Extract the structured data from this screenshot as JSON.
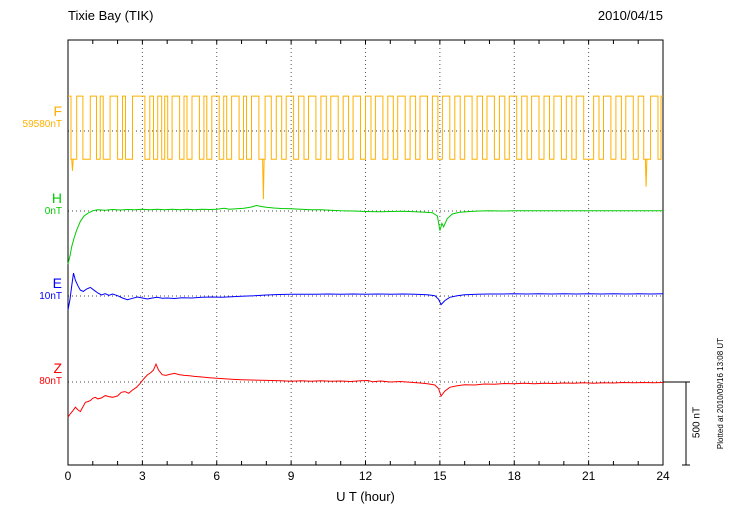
{
  "header": {
    "title": "Tixie Bay (TIK)",
    "date": "2010/04/15"
  },
  "footer": {
    "xaxis_label": "U T (hour)",
    "plotted_at": "Plotted at 2010/09/16 13:08 UT"
  },
  "chart_data": {
    "type": "line",
    "title": "Tixie Bay (TIK)",
    "subtitle": "2010/04/15",
    "xlabel": "U T (hour)",
    "ylabel": "",
    "x_range": [
      0,
      24
    ],
    "x_ticks": [
      0,
      3,
      6,
      9,
      12,
      15,
      18,
      21,
      24
    ],
    "minor_tick_step_hours": 1,
    "grid": "dotted vertical lines at major ticks; dotted horizontal baseline per channel",
    "legend_position": "left channel labels",
    "scale_bar": {
      "label": "500 nT",
      "nT": 500
    },
    "values_are_offsets_nT_from_channel_baseline": true,
    "series": [
      {
        "name": "F",
        "baseline_label": "59580nT",
        "color": "#FFB000",
        "kind": "square",
        "high_nT": 210,
        "low_nT": -170,
        "pulses_high": [
          [
            0.0,
            0.12
          ],
          [
            0.35,
            0.6
          ],
          [
            0.9,
            1.15
          ],
          [
            1.3,
            1.42
          ],
          [
            1.7,
            2.0
          ],
          [
            2.2,
            2.32
          ],
          [
            2.6,
            3.1
          ],
          [
            3.3,
            3.45
          ],
          [
            3.62,
            3.78
          ],
          [
            3.9,
            4.02
          ],
          [
            4.2,
            4.5
          ],
          [
            4.68,
            4.8
          ],
          [
            5.0,
            5.3
          ],
          [
            5.48,
            5.6
          ],
          [
            5.8,
            6.1
          ],
          [
            6.28,
            6.4
          ],
          [
            6.6,
            6.9
          ],
          [
            7.08,
            7.2
          ],
          [
            7.4,
            7.7
          ],
          [
            7.95,
            8.2
          ],
          [
            8.4,
            8.62
          ],
          [
            8.8,
            9.1
          ],
          [
            9.3,
            9.52
          ],
          [
            9.7,
            10.0
          ],
          [
            10.2,
            10.42
          ],
          [
            10.6,
            10.9
          ],
          [
            11.1,
            11.32
          ],
          [
            11.5,
            11.8
          ],
          [
            12.0,
            12.22
          ],
          [
            12.4,
            12.7
          ],
          [
            12.9,
            13.12
          ],
          [
            13.3,
            13.6
          ],
          [
            13.8,
            14.02
          ],
          [
            14.2,
            14.5
          ],
          [
            14.7,
            14.92
          ],
          [
            15.1,
            15.4
          ],
          [
            15.6,
            15.82
          ],
          [
            16.0,
            16.3
          ],
          [
            16.5,
            16.72
          ],
          [
            16.9,
            17.2
          ],
          [
            17.4,
            17.62
          ],
          [
            17.8,
            18.1
          ],
          [
            18.3,
            18.52
          ],
          [
            18.7,
            19.0
          ],
          [
            19.2,
            19.42
          ],
          [
            19.6,
            19.9
          ],
          [
            20.1,
            20.32
          ],
          [
            20.5,
            20.8
          ],
          [
            21.2,
            21.42
          ],
          [
            21.6,
            21.9
          ],
          [
            22.1,
            22.32
          ],
          [
            22.5,
            22.8
          ],
          [
            23.0,
            23.22
          ],
          [
            23.5,
            23.8
          ],
          [
            23.92,
            24.0
          ]
        ],
        "spikes": [
          [
            0.18,
            -240
          ],
          [
            7.88,
            -410
          ],
          [
            23.32,
            -335
          ]
        ]
      },
      {
        "name": "H",
        "baseline_label": "0nT",
        "color": "#00CC00",
        "kind": "line",
        "points": [
          [
            0,
            -320
          ],
          [
            0.08,
            -270
          ],
          [
            0.15,
            -215
          ],
          [
            0.25,
            -160
          ],
          [
            0.35,
            -115
          ],
          [
            0.5,
            -62
          ],
          [
            0.65,
            -30
          ],
          [
            0.8,
            -14
          ],
          [
            1.0,
            2
          ],
          [
            1.2,
            8
          ],
          [
            1.5,
            5
          ],
          [
            1.8,
            9
          ],
          [
            2.1,
            6
          ],
          [
            2.4,
            9
          ],
          [
            2.7,
            7
          ],
          [
            3.0,
            10
          ],
          [
            3.3,
            7
          ],
          [
            3.6,
            11
          ],
          [
            3.9,
            8
          ],
          [
            4.2,
            11
          ],
          [
            4.5,
            8
          ],
          [
            4.8,
            10
          ],
          [
            5.1,
            8
          ],
          [
            5.4,
            11
          ],
          [
            5.7,
            9
          ],
          [
            6.0,
            11
          ],
          [
            6.3,
            17
          ],
          [
            6.5,
            11
          ],
          [
            6.8,
            13
          ],
          [
            7.1,
            16
          ],
          [
            7.4,
            24
          ],
          [
            7.6,
            33
          ],
          [
            7.8,
            27
          ],
          [
            8.0,
            22
          ],
          [
            8.3,
            18
          ],
          [
            8.6,
            15
          ],
          [
            9.0,
            13
          ],
          [
            9.4,
            10
          ],
          [
            9.8,
            8
          ],
          [
            10.2,
            7
          ],
          [
            10.6,
            5
          ],
          [
            11.0,
            2
          ],
          [
            11.5,
            0
          ],
          [
            12.0,
            -3
          ],
          [
            12.5,
            -5
          ],
          [
            13.0,
            -3
          ],
          [
            13.5,
            -2
          ],
          [
            14.0,
            -5
          ],
          [
            14.4,
            -7
          ],
          [
            14.7,
            -10
          ],
          [
            14.9,
            -30
          ],
          [
            15.0,
            -118
          ],
          [
            15.08,
            -75
          ],
          [
            15.15,
            -95
          ],
          [
            15.3,
            -45
          ],
          [
            15.5,
            -18
          ],
          [
            15.8,
            -8
          ],
          [
            16.2,
            -3
          ],
          [
            16.6,
            0
          ],
          [
            17.0,
            2
          ],
          [
            17.5,
            0
          ],
          [
            18.0,
            2
          ],
          [
            18.5,
            1
          ],
          [
            19.0,
            2
          ],
          [
            19.5,
            1
          ],
          [
            20.0,
            2
          ],
          [
            20.5,
            1
          ],
          [
            21.0,
            2
          ],
          [
            21.5,
            1
          ],
          [
            22.0,
            2
          ],
          [
            22.5,
            1
          ],
          [
            23.0,
            2
          ],
          [
            23.5,
            1
          ],
          [
            24,
            2
          ]
        ]
      },
      {
        "name": "E",
        "baseline_label": "10nT",
        "color": "#0000FF",
        "kind": "line",
        "points": [
          [
            0,
            -85
          ],
          [
            0.08,
            -20
          ],
          [
            0.15,
            60
          ],
          [
            0.22,
            138
          ],
          [
            0.3,
            95
          ],
          [
            0.4,
            62
          ],
          [
            0.5,
            35
          ],
          [
            0.62,
            28
          ],
          [
            0.75,
            42
          ],
          [
            0.9,
            52
          ],
          [
            1.05,
            35
          ],
          [
            1.2,
            18
          ],
          [
            1.35,
            6
          ],
          [
            1.5,
            14
          ],
          [
            1.65,
            4
          ],
          [
            1.8,
            12
          ],
          [
            2.0,
            2
          ],
          [
            2.2,
            -12
          ],
          [
            2.4,
            -22
          ],
          [
            2.6,
            -14
          ],
          [
            2.8,
            -6
          ],
          [
            3.0,
            -12
          ],
          [
            3.2,
            -18
          ],
          [
            3.4,
            -12
          ],
          [
            3.6,
            -8
          ],
          [
            3.8,
            -14
          ],
          [
            4.0,
            -12
          ],
          [
            4.3,
            -15
          ],
          [
            4.6,
            -10
          ],
          [
            5.0,
            -12
          ],
          [
            5.4,
            -8
          ],
          [
            5.8,
            -6
          ],
          [
            6.2,
            -8
          ],
          [
            6.6,
            -4
          ],
          [
            7.0,
            -2
          ],
          [
            7.5,
            1
          ],
          [
            8.0,
            6
          ],
          [
            8.5,
            9
          ],
          [
            9.0,
            10
          ],
          [
            9.5,
            11
          ],
          [
            10.0,
            10
          ],
          [
            10.5,
            12
          ],
          [
            11.0,
            10
          ],
          [
            11.5,
            12
          ],
          [
            12.0,
            11
          ],
          [
            12.5,
            12
          ],
          [
            13.0,
            11
          ],
          [
            13.5,
            12
          ],
          [
            14.0,
            10
          ],
          [
            14.5,
            7
          ],
          [
            14.8,
            2
          ],
          [
            14.95,
            -20
          ],
          [
            15.05,
            -52
          ],
          [
            15.2,
            -28
          ],
          [
            15.4,
            -8
          ],
          [
            15.7,
            2
          ],
          [
            16.0,
            8
          ],
          [
            16.5,
            11
          ],
          [
            17.0,
            12
          ],
          [
            17.5,
            12
          ],
          [
            18.0,
            13
          ],
          [
            18.5,
            12
          ],
          [
            19.0,
            13
          ],
          [
            19.5,
            12
          ],
          [
            20.0,
            13
          ],
          [
            20.5,
            12
          ],
          [
            21.0,
            13
          ],
          [
            21.5,
            12
          ],
          [
            22.0,
            13
          ],
          [
            22.5,
            12
          ],
          [
            23.0,
            13
          ],
          [
            23.5,
            12
          ],
          [
            24,
            13
          ]
        ]
      },
      {
        "name": "Z",
        "baseline_label": "80nT",
        "color": "#FF0000",
        "kind": "line",
        "points": [
          [
            0,
            -212
          ],
          [
            0.1,
            -190
          ],
          [
            0.2,
            -172
          ],
          [
            0.3,
            -152
          ],
          [
            0.4,
            -168
          ],
          [
            0.5,
            -178
          ],
          [
            0.6,
            -150
          ],
          [
            0.7,
            -122
          ],
          [
            0.8,
            -118
          ],
          [
            0.9,
            -112
          ],
          [
            1.0,
            -98
          ],
          [
            1.1,
            -92
          ],
          [
            1.2,
            -102
          ],
          [
            1.35,
            -96
          ],
          [
            1.5,
            -82
          ],
          [
            1.65,
            -88
          ],
          [
            1.8,
            -92
          ],
          [
            2.0,
            -84
          ],
          [
            2.15,
            -62
          ],
          [
            2.3,
            -58
          ],
          [
            2.45,
            -68
          ],
          [
            2.6,
            -48
          ],
          [
            2.75,
            -34
          ],
          [
            2.9,
            -10
          ],
          [
            3.05,
            18
          ],
          [
            3.2,
            42
          ],
          [
            3.35,
            58
          ],
          [
            3.45,
            72
          ],
          [
            3.55,
            108
          ],
          [
            3.65,
            72
          ],
          [
            3.8,
            44
          ],
          [
            3.95,
            40
          ],
          [
            4.1,
            46
          ],
          [
            4.3,
            52
          ],
          [
            4.5,
            44
          ],
          [
            4.7,
            40
          ],
          [
            4.9,
            38
          ],
          [
            5.1,
            34
          ],
          [
            5.4,
            30
          ],
          [
            5.7,
            26
          ],
          [
            6.0,
            22
          ],
          [
            6.3,
            20
          ],
          [
            6.6,
            17
          ],
          [
            7.0,
            14
          ],
          [
            7.4,
            12
          ],
          [
            7.8,
            10
          ],
          [
            8.2,
            9
          ],
          [
            8.6,
            7
          ],
          [
            9.0,
            5
          ],
          [
            9.4,
            7
          ],
          [
            9.8,
            5
          ],
          [
            10.2,
            7
          ],
          [
            10.6,
            4
          ],
          [
            11.0,
            6
          ],
          [
            11.4,
            3
          ],
          [
            11.8,
            7
          ],
          [
            12.1,
            9
          ],
          [
            12.3,
            1
          ],
          [
            12.6,
            6
          ],
          [
            13.0,
            0
          ],
          [
            13.4,
            3
          ],
          [
            13.8,
            -2
          ],
          [
            14.2,
            -6
          ],
          [
            14.5,
            -11
          ],
          [
            14.8,
            -18
          ],
          [
            14.95,
            -40
          ],
          [
            15.05,
            -85
          ],
          [
            15.2,
            -55
          ],
          [
            15.4,
            -32
          ],
          [
            15.7,
            -22
          ],
          [
            16.0,
            -16
          ],
          [
            16.4,
            -18
          ],
          [
            16.8,
            -12
          ],
          [
            17.2,
            -14
          ],
          [
            17.6,
            -9
          ],
          [
            18.0,
            -11
          ],
          [
            18.4,
            -8
          ],
          [
            18.8,
            -10
          ],
          [
            19.2,
            -7
          ],
          [
            19.6,
            -9
          ],
          [
            20.0,
            -6
          ],
          [
            20.4,
            -8
          ],
          [
            20.8,
            -5
          ],
          [
            21.2,
            -7
          ],
          [
            21.6,
            -4
          ],
          [
            22.0,
            -6
          ],
          [
            22.4,
            -3
          ],
          [
            22.8,
            -5
          ],
          [
            23.2,
            -3
          ],
          [
            23.6,
            -4
          ],
          [
            24,
            -3
          ]
        ]
      }
    ]
  }
}
